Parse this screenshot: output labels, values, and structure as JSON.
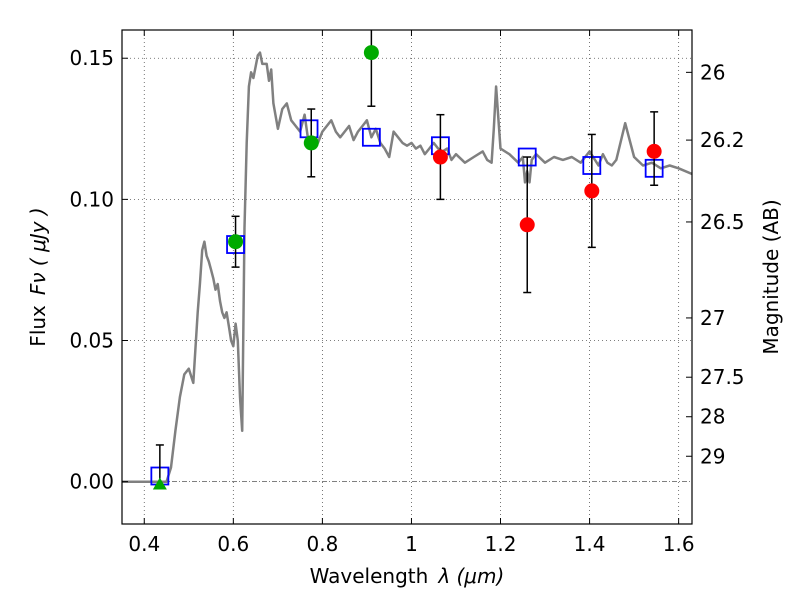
{
  "chart_data": {
    "type": "scatter",
    "xlabel": "Wavelength",
    "xlabel_symbol": "λ (μm)",
    "ylabel": "Flux",
    "ylabel_symbol": "Fν ( μJy )",
    "ylabel_right": "Magnitude (AB)",
    "xlim": [
      0.35,
      1.63
    ],
    "ylim": [
      -0.015,
      0.16
    ],
    "grid": true,
    "legend": "none",
    "x_ticks": [
      0.4,
      0.6,
      0.8,
      1.0,
      1.2,
      1.4,
      1.6
    ],
    "x_tick_labels": [
      "0.4",
      "0.6",
      "0.8",
      "1",
      "1.2",
      "1.4",
      "1.6"
    ],
    "y_ticks": [
      0.0,
      0.05,
      0.1,
      0.15
    ],
    "y_tick_labels": [
      "0.00",
      "0.05",
      "0.10",
      "0.15"
    ],
    "right_ticks": [
      {
        "label": "26",
        "flux": 0.145
      },
      {
        "label": "26.2",
        "flux": 0.121
      },
      {
        "label": "26.5",
        "flux": 0.092
      },
      {
        "label": "27",
        "flux": 0.058
      },
      {
        "label": "27.5",
        "flux": 0.037
      },
      {
        "label": "28",
        "flux": 0.023
      },
      {
        "label": "29",
        "flux": 0.009
      }
    ],
    "colors": {
      "model": "#808080",
      "model_points": "#0000ff",
      "green": "#00aa00",
      "red": "#ff0000",
      "errorbar": "#000000",
      "grid": "#555555"
    },
    "series": [
      {
        "kind": "model_spectrum",
        "x": [
          0.35,
          0.45,
          0.46,
          0.47,
          0.48,
          0.49,
          0.5,
          0.51,
          0.52,
          0.525,
          0.53,
          0.535,
          0.54,
          0.545,
          0.55,
          0.555,
          0.56,
          0.565,
          0.57,
          0.575,
          0.58,
          0.585,
          0.59,
          0.595,
          0.6,
          0.605,
          0.61,
          0.615,
          0.62,
          0.625,
          0.63,
          0.635,
          0.64,
          0.645,
          0.65,
          0.655,
          0.66,
          0.665,
          0.67,
          0.675,
          0.68,
          0.685,
          0.69,
          0.7,
          0.71,
          0.72,
          0.73,
          0.74,
          0.75,
          0.76,
          0.77,
          0.78,
          0.79,
          0.8,
          0.81,
          0.82,
          0.83,
          0.84,
          0.85,
          0.86,
          0.87,
          0.88,
          0.89,
          0.9,
          0.91,
          0.92,
          0.93,
          0.94,
          0.95,
          0.96,
          0.97,
          0.98,
          0.99,
          1.0,
          1.01,
          1.02,
          1.03,
          1.04,
          1.05,
          1.06,
          1.07,
          1.08,
          1.09,
          1.1,
          1.12,
          1.14,
          1.16,
          1.17,
          1.18,
          1.185,
          1.19,
          1.2,
          1.22,
          1.24,
          1.25,
          1.255,
          1.26,
          1.265,
          1.27,
          1.28,
          1.3,
          1.32,
          1.34,
          1.36,
          1.38,
          1.4,
          1.42,
          1.43,
          1.44,
          1.45,
          1.46,
          1.48,
          1.5,
          1.52,
          1.54,
          1.56,
          1.58,
          1.6,
          1.63
        ],
        "y": [
          0.0,
          0.0,
          0.005,
          0.018,
          0.03,
          0.038,
          0.04,
          0.035,
          0.06,
          0.07,
          0.082,
          0.085,
          0.08,
          0.078,
          0.075,
          0.072,
          0.068,
          0.07,
          0.064,
          0.06,
          0.058,
          0.06,
          0.055,
          0.05,
          0.048,
          0.056,
          0.05,
          0.03,
          0.018,
          0.09,
          0.12,
          0.14,
          0.145,
          0.143,
          0.147,
          0.151,
          0.152,
          0.148,
          0.148,
          0.148,
          0.142,
          0.146,
          0.134,
          0.125,
          0.132,
          0.134,
          0.128,
          0.126,
          0.124,
          0.13,
          0.119,
          0.122,
          0.12,
          0.124,
          0.126,
          0.128,
          0.124,
          0.122,
          0.124,
          0.126,
          0.121,
          0.124,
          0.126,
          0.128,
          0.122,
          0.125,
          0.12,
          0.118,
          0.115,
          0.124,
          0.122,
          0.12,
          0.119,
          0.12,
          0.118,
          0.119,
          0.116,
          0.118,
          0.12,
          0.118,
          0.117,
          0.118,
          0.114,
          0.116,
          0.113,
          0.115,
          0.117,
          0.114,
          0.113,
          0.125,
          0.14,
          0.118,
          0.116,
          0.113,
          0.115,
          0.106,
          0.11,
          0.106,
          0.114,
          0.116,
          0.113,
          0.115,
          0.114,
          0.115,
          0.113,
          0.117,
          0.112,
          0.116,
          0.113,
          0.112,
          0.114,
          0.127,
          0.115,
          0.112,
          0.113,
          0.111,
          0.112,
          0.111,
          0.109
        ]
      },
      {
        "kind": "model_points",
        "x": [
          0.435,
          0.605,
          0.77,
          0.91,
          1.065,
          1.26,
          1.405,
          1.545
        ],
        "y": [
          0.002,
          0.084,
          0.125,
          0.122,
          0.119,
          0.115,
          0.112,
          0.111
        ]
      },
      {
        "kind": "green_points",
        "x": [
          0.435,
          0.605,
          0.775,
          0.91
        ],
        "y": [
          -0.001,
          0.085,
          0.12,
          0.152
        ],
        "err_low": [
          0.001,
          0.009,
          0.012,
          0.019
        ],
        "err_high": [
          0.014,
          0.009,
          0.012,
          0.019
        ],
        "marker": [
          "triangle",
          "circle",
          "circle",
          "circle"
        ]
      },
      {
        "kind": "red_points",
        "x": [
          1.065,
          1.26,
          1.405,
          1.545
        ],
        "y": [
          0.115,
          0.091,
          0.103,
          0.117
        ],
        "err_low": [
          0.015,
          0.024,
          0.02,
          0.012
        ],
        "err_high": [
          0.015,
          0.024,
          0.02,
          0.014
        ]
      }
    ]
  }
}
